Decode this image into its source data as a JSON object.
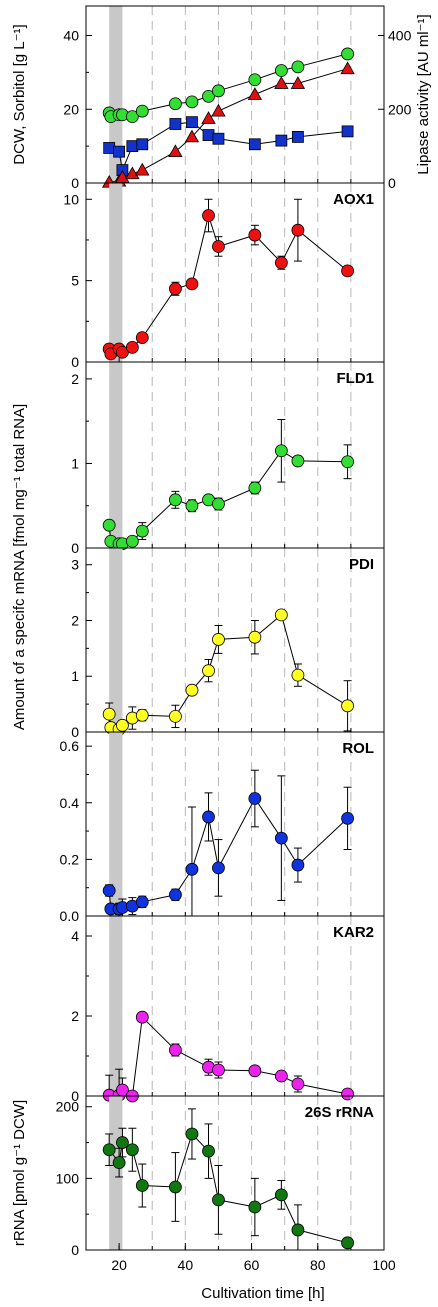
{
  "xlabel": "Cultivation time [h]",
  "xlim": [
    10,
    100
  ],
  "xticks": [
    20,
    40,
    60,
    80,
    100
  ],
  "grid_x": [
    30,
    40,
    50,
    60,
    70,
    80,
    90
  ],
  "induction_band": [
    17,
    21
  ],
  "shared_ylabel": "Amount of a specifc mRNA [fmol mg⁻¹ total RNA]",
  "chart_data": [
    {
      "type": "scatter",
      "title": "",
      "ylabel": "DCW, Sorbitol [g L⁻¹]",
      "y2label": "Lipase activity [AU ml⁻¹]",
      "ylim": [
        0,
        48
      ],
      "yticks": [
        0,
        20,
        40
      ],
      "y2lim": [
        0,
        480
      ],
      "y2ticks": [
        0,
        200,
        400
      ],
      "series": [
        {
          "color": "#33dd33",
          "marker": "circle",
          "axis": "left",
          "x": [
            17,
            17.5,
            20,
            21,
            24,
            27,
            37,
            42,
            47,
            50,
            61,
            69,
            74,
            89
          ],
          "y": [
            19,
            18,
            18.5,
            18.5,
            18,
            19.5,
            21.5,
            22,
            23.5,
            25,
            28,
            30.5,
            31.5,
            35
          ]
        },
        {
          "color": "#1133cc",
          "marker": "square",
          "axis": "left",
          "x": [
            17,
            20,
            21,
            24,
            27,
            37,
            42,
            47,
            50,
            61,
            69,
            74,
            89
          ],
          "y": [
            9.5,
            8.5,
            3.5,
            10,
            10.5,
            16,
            16.5,
            13,
            12,
            10.5,
            11.5,
            12.5,
            14
          ]
        },
        {
          "color": "#dd1111",
          "marker": "triangle",
          "axis": "right",
          "x": [
            17,
            20,
            21,
            24,
            27,
            37,
            42,
            47,
            50,
            61,
            69,
            74,
            89
          ],
          "y": [
            2,
            5,
            15,
            25,
            35,
            85,
            125,
            175,
            195,
            240,
            270,
            270,
            310
          ]
        }
      ]
    },
    {
      "type": "scatter",
      "title": "AOX1",
      "ylim": [
        0,
        11
      ],
      "yticks": [
        0,
        5,
        10
      ],
      "series": [
        {
          "color": "#ee1111",
          "marker": "circle",
          "x": [
            17,
            17.5,
            20,
            21,
            24,
            27,
            37,
            42,
            47,
            50,
            61,
            69,
            74,
            89
          ],
          "y": [
            0.8,
            0.5,
            0.8,
            0.6,
            0.9,
            1.5,
            4.5,
            4.8,
            9,
            7.1,
            7.8,
            6.1,
            8.1,
            5.6
          ],
          "err": [
            0.15,
            0.1,
            0.1,
            0.1,
            0.1,
            0.15,
            0.4,
            0.2,
            1.0,
            0.6,
            0.6,
            0.4,
            1.9,
            0.15
          ]
        }
      ]
    },
    {
      "type": "scatter",
      "title": "FLD1",
      "ylim": [
        0,
        2.2
      ],
      "yticks": [
        0,
        1,
        2
      ],
      "series": [
        {
          "color": "#33dd33",
          "marker": "circle",
          "x": [
            17,
            17.5,
            20,
            21,
            24,
            27,
            37,
            42,
            47,
            50,
            61,
            69,
            74,
            89
          ],
          "y": [
            0.27,
            0.08,
            0.05,
            0.05,
            0.08,
            0.2,
            0.57,
            0.5,
            0.57,
            0.52,
            0.71,
            1.15,
            1.03,
            1.02
          ],
          "err": [
            0.03,
            0.03,
            0.02,
            0.02,
            0.03,
            0.1,
            0.1,
            0.07,
            0.05,
            0.07,
            0.07,
            0.37,
            0.05,
            0.2
          ]
        }
      ]
    },
    {
      "type": "scatter",
      "title": "PDI",
      "ylim": [
        0,
        3.3
      ],
      "yticks": [
        0,
        1,
        2,
        3
      ],
      "series": [
        {
          "color": "#ffff22",
          "marker": "circle",
          "x": [
            17,
            17.5,
            20,
            21,
            24,
            27,
            37,
            42,
            47,
            50,
            61,
            69,
            74,
            89
          ],
          "y": [
            0.32,
            0.08,
            0.05,
            0.12,
            0.25,
            0.3,
            0.28,
            0.75,
            1.1,
            1.66,
            1.7,
            2.1,
            1.02,
            0.47
          ],
          "err": [
            0.2,
            0.05,
            0.03,
            0.05,
            0.2,
            0.1,
            0.2,
            0.05,
            0.2,
            0.25,
            0.3,
            0.05,
            0.2,
            0.45
          ]
        }
      ]
    },
    {
      "type": "scatter",
      "title": "ROL",
      "ylim": [
        0,
        0.65
      ],
      "yticks": [
        0.0,
        0.2,
        0.4,
        0.6
      ],
      "series": [
        {
          "color": "#1133dd",
          "marker": "circle",
          "x": [
            17,
            17.5,
            20,
            21,
            24,
            27,
            37,
            42,
            47,
            50,
            61,
            69,
            74,
            89
          ],
          "y": [
            0.09,
            0.025,
            0.025,
            0.03,
            0.035,
            0.05,
            0.075,
            0.165,
            0.35,
            0.17,
            0.415,
            0.275,
            0.18,
            0.345
          ],
          "err": [
            0.02,
            0.01,
            0.02,
            0.03,
            0.03,
            0.02,
            0.02,
            0.22,
            0.085,
            0.1,
            0.1,
            0.22,
            0.06,
            0.11
          ]
        }
      ]
    },
    {
      "type": "scatter",
      "title": "KAR2",
      "ylim": [
        0,
        4.5
      ],
      "yticks": [
        0,
        2,
        4
      ],
      "series": [
        {
          "color": "#ee22ee",
          "marker": "circle",
          "x": [
            17,
            20,
            21,
            24,
            27,
            37,
            47,
            50,
            61,
            69,
            74,
            89
          ],
          "y": [
            0.02,
            0.02,
            0.15,
            0.0,
            1.97,
            1.15,
            0.72,
            0.65,
            0.63,
            0.5,
            0.3,
            0.05
          ],
          "err": [
            0.5,
            0.65,
            0.3,
            0.05,
            0.05,
            0.15,
            0.2,
            0.2,
            0.05,
            0.05,
            0.2,
            0.05
          ]
        }
      ]
    },
    {
      "type": "scatter",
      "title": "26S rRNA",
      "ylabel": "rRNA [pmol g⁻¹ DCW]",
      "ylim": [
        0,
        215
      ],
      "yticks": [
        0,
        100,
        200
      ],
      "series": [
        {
          "color": "#117711",
          "marker": "circle",
          "x": [
            17,
            20,
            21,
            24,
            27,
            37,
            42,
            47,
            50,
            61,
            69,
            74,
            89
          ],
          "y": [
            140,
            122,
            150,
            140,
            90,
            88,
            162,
            138,
            70,
            60,
            77,
            28,
            10
          ],
          "err": [
            22,
            20,
            20,
            30,
            30,
            48,
            35,
            38,
            48,
            40,
            20,
            35,
            3
          ]
        }
      ]
    }
  ]
}
